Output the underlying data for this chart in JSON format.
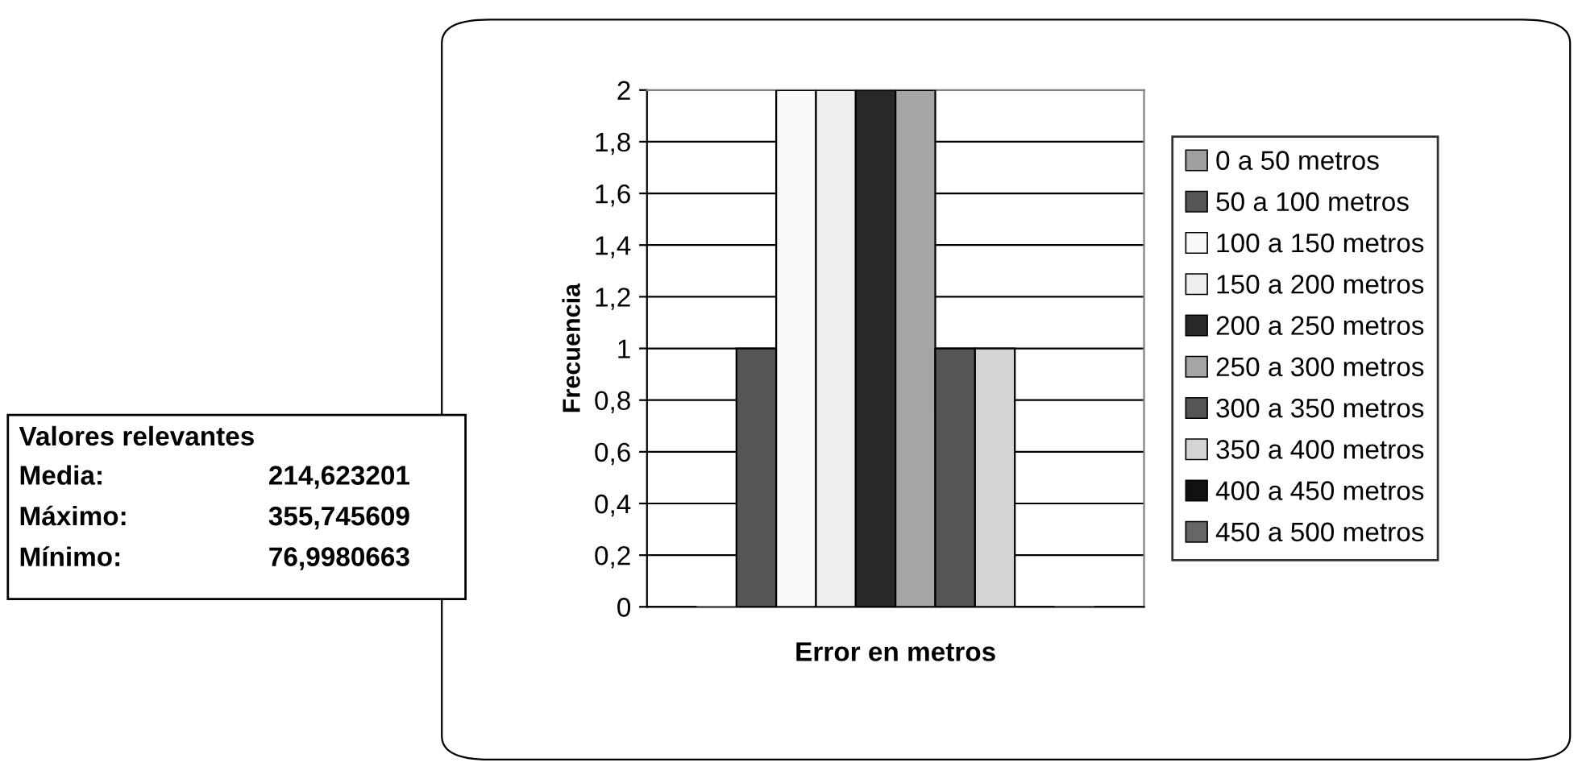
{
  "chart_data": {
    "type": "bar",
    "xlabel": "Error en metros",
    "ylabel": "Frecuencia",
    "categories": [
      null
    ],
    "series": [
      {
        "name": "0 a 50 metros",
        "color": "#a0a0a0",
        "values": [
          0
        ]
      },
      {
        "name": "50 a 100 metros",
        "color": "#555555",
        "values": [
          1
        ]
      },
      {
        "name": "100 a 150 metros",
        "color": "#fafafa",
        "values": [
          2
        ]
      },
      {
        "name": "150 a 200 metros",
        "color": "#eeeeee",
        "values": [
          2
        ]
      },
      {
        "name": "200 a 250 metros",
        "color": "#282828",
        "values": [
          2
        ]
      },
      {
        "name": "250 a 300 metros",
        "color": "#a6a6a6",
        "values": [
          2
        ]
      },
      {
        "name": "300 a 350 metros",
        "color": "#555555",
        "values": [
          1
        ]
      },
      {
        "name": "350 a 400 metros",
        "color": "#d4d4d4",
        "values": [
          1
        ]
      },
      {
        "name": "400 a 450 metros",
        "color": "#111111",
        "values": [
          0
        ]
      },
      {
        "name": "450 a 500 metros",
        "color": "#666666",
        "values": [
          0
        ]
      }
    ],
    "ylim": [
      0,
      2
    ],
    "yticks": [
      0,
      {
        "value": 0.2,
        "label": "0,2"
      },
      {
        "value": 0.4,
        "label": "0,4"
      },
      {
        "value": 0.6,
        "label": "0,6"
      },
      {
        "value": 0.8,
        "label": "0,8"
      },
      1,
      {
        "value": 1.2,
        "label": "1,2"
      },
      {
        "value": 1.4,
        "label": "1,4"
      },
      {
        "value": 1.6,
        "label": "1,6"
      },
      {
        "value": 1.8,
        "label": "1,8"
      },
      2
    ],
    "grid": "y",
    "legend": "right",
    "annotations": [
      "Valores relevantes",
      "Media:",
      "214,623201",
      "Máximo:",
      "355,745609",
      "Mínimo:",
      "76,9980663"
    ]
  }
}
